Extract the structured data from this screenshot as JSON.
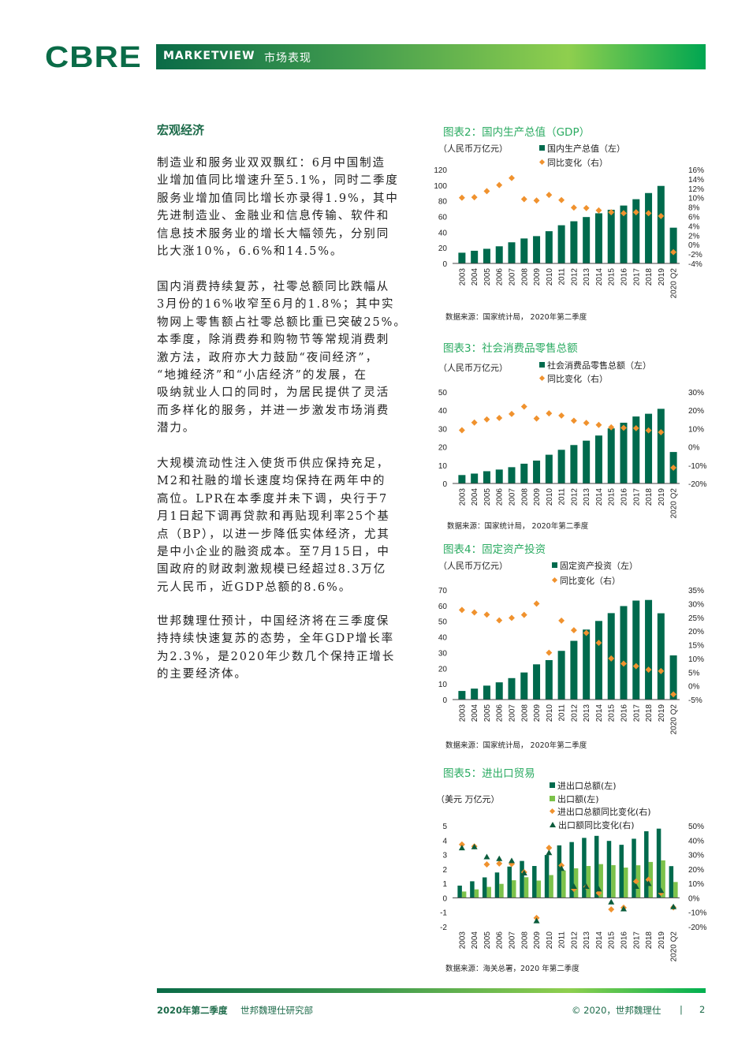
{
  "header": {
    "logo": "CBRE",
    "banner_title": "MARKETVIEW",
    "banner_subtitle": "市场表现"
  },
  "section_heading": "宏观经济",
  "paragraphs": [
    [
      "制造业和服务业双双飘红：6月中国制造",
      "业增加值同比增速升至5.1%，同时二季度",
      "服务业增加值同比增长亦录得1.9%，其中",
      "先进制造业、金融业和信息传输、软件和",
      "信息技术服务业的增长大幅领先，分别同",
      "比大涨10%，6.6%和14.5%。"
    ],
    [
      "国内消费持续复苏，社零总额同比跌幅从",
      "3月份的16%收窄至6月的1.8%；其中实",
      "物网上零售额占社零总额比重已突破25%。",
      "本季度，除消费券和购物节等常规消费刺",
      "激方法，政府亦大力鼓励“夜间经济”，",
      "“地摊经济”和“小店经济”的发展，在",
      "吸纳就业人口的同时，为居民提供了灵活",
      "而多样化的服务，并进一步激发市场消费",
      "潜力。"
    ],
    [
      "大规模流动性注入使货币供应保持充足，",
      "M2和社融的增长速度均保持在两年中的",
      "高位。LPR在本季度并未下调，央行于7",
      "月1日起下调再贷款和再贴现利率25个基",
      "点（BP），以进一步降低实体经济，尤其",
      "是中小企业的融资成本。至7月15日，中",
      "国政府的财政刺激规模已经超过8.3万亿",
      "元人民币，近GDP总额的8.6%。"
    ],
    [
      "世邦魏理仕预计，中国经济将在三季度保",
      "持持续快速复苏的态势，全年GDP增长率",
      "为2.3%，是2020年少数几个保持正增长",
      "的主要经济体。"
    ]
  ],
  "colors": {
    "bar_dark": "#006a4d",
    "bar_light": "#7cc24a",
    "diamond": "#f0922e",
    "triangle": "#0b5c3c",
    "accent": "#2bab62"
  },
  "chart_data": [
    {
      "type": "bar",
      "title": "图表2：国内生产总值（GDP）",
      "ylabel": "（人民币万亿元）",
      "categories": [
        "2003",
        "2004",
        "2005",
        "2006",
        "2007",
        "2008",
        "2009",
        "2010",
        "2011",
        "2012",
        "2013",
        "2014",
        "2015",
        "2016",
        "2017",
        "2018",
        "2019",
        "2020 Q2"
      ],
      "series": [
        {
          "name": "国内生产总值（左）",
          "kind": "bar",
          "axis": "left",
          "values": [
            13.7,
            16.2,
            18.7,
            21.9,
            27.0,
            31.9,
            34.9,
            41.2,
            48.8,
            53.9,
            59.3,
            64.1,
            68.6,
            74.0,
            82.1,
            90.0,
            99.1,
            45.7
          ]
        },
        {
          "name": "同比变化（右）",
          "kind": "diamond",
          "axis": "right",
          "values": [
            10.0,
            10.1,
            11.4,
            12.7,
            14.2,
            9.7,
            9.4,
            10.6,
            9.5,
            7.9,
            7.8,
            7.3,
            6.9,
            6.7,
            6.9,
            6.7,
            6.1,
            -1.6
          ]
        }
      ],
      "ylim": [
        0,
        120
      ],
      "yticks": [
        "0",
        "20",
        "40",
        "60",
        "80",
        "100",
        "120"
      ],
      "y2lim": [
        -4,
        16
      ],
      "y2ticks": [
        "-4%",
        "-2%",
        "0%",
        "2%",
        "4%",
        "6%",
        "8%",
        "10%",
        "12%",
        "14%",
        "16%"
      ],
      "legend": "top-right",
      "source": "数据来源：国家统计局， 2020年第二季度"
    },
    {
      "type": "bar",
      "title": "图表3：社会消费品零售总额",
      "ylabel": "（人民币万亿元）",
      "categories": [
        "2003",
        "2004",
        "2005",
        "2006",
        "2007",
        "2008",
        "2009",
        "2010",
        "2011",
        "2012",
        "2013",
        "2014",
        "2015",
        "2016",
        "2017",
        "2018",
        "2019",
        "2020 Q2"
      ],
      "series": [
        {
          "name": "社会消费品零售总额（左）",
          "kind": "bar",
          "axis": "left",
          "values": [
            4.6,
            5.4,
            6.7,
            7.6,
            8.9,
            10.8,
            12.5,
            15.7,
            18.4,
            21.0,
            23.4,
            26.2,
            30.1,
            33.2,
            36.6,
            38.1,
            40.8,
            17.2
          ]
        },
        {
          "name": "同比变化（右）",
          "kind": "diamond",
          "axis": "right",
          "values": [
            9.1,
            13.3,
            15.0,
            15.8,
            18.0,
            22.0,
            15.5,
            18.3,
            17.1,
            14.3,
            13.1,
            12.0,
            10.7,
            10.4,
            10.2,
            9.0,
            8.0,
            -11.4
          ]
        }
      ],
      "ylim": [
        0,
        50
      ],
      "yticks": [
        "0",
        "10",
        "20",
        "30",
        "40",
        "50"
      ],
      "y2lim": [
        -20,
        30
      ],
      "y2ticks": [
        "-20%",
        "-10%",
        "0%",
        "10%",
        "20%",
        "30%"
      ],
      "legend": "top-right",
      "source": "数据来源：国家统计局， 2020年第二季度"
    },
    {
      "type": "bar",
      "title": "图表4：固定资产投资",
      "ylabel": "（人民币万亿元）",
      "categories": [
        "2003",
        "2004",
        "2005",
        "2006",
        "2007",
        "2008",
        "2009",
        "2010",
        "2011",
        "2012",
        "2013",
        "2014",
        "2015",
        "2016",
        "2017",
        "2018",
        "2019",
        "2020 Q2"
      ],
      "series": [
        {
          "name": "固定资产投资（左）",
          "kind": "bar",
          "axis": "left",
          "values": [
            5.5,
            7.0,
            8.9,
            11.0,
            13.7,
            17.3,
            22.5,
            25.2,
            31.1,
            37.5,
            44.7,
            50.2,
            55.2,
            59.7,
            63.2,
            63.6,
            55.1,
            28.2
          ]
        },
        {
          "name": "同比变化（右）",
          "kind": "diamond",
          "axis": "right",
          "values": [
            27.7,
            26.8,
            26.0,
            23.9,
            24.8,
            25.9,
            30.0,
            12.1,
            23.8,
            20.3,
            19.3,
            15.7,
            10.0,
            8.1,
            7.2,
            5.9,
            5.4,
            -3.1
          ]
        }
      ],
      "ylim": [
        0,
        70
      ],
      "yticks": [
        "0",
        "10",
        "20",
        "30",
        "40",
        "50",
        "60",
        "70"
      ],
      "y2lim": [
        -5,
        35
      ],
      "y2ticks": [
        "-5%",
        "0%",
        "5%",
        "10%",
        "15%",
        "20%",
        "25%",
        "30%",
        "35%"
      ],
      "legend": "top-right",
      "source": "数据来源：国家统计局， 2020年第二季度"
    },
    {
      "type": "bar",
      "title": "图表5：进出口贸易",
      "ylabel": "（美元 万亿元）",
      "categories": [
        "2003",
        "2004",
        "2005",
        "2006",
        "2007",
        "2008",
        "2009",
        "2010",
        "2011",
        "2012",
        "2013",
        "2014",
        "2015",
        "2016",
        "2017",
        "2018",
        "2019",
        "2020 Q2"
      ],
      "series": [
        {
          "name": "进出口总额(左)",
          "kind": "bar",
          "axis": "left",
          "values": [
            0.85,
            1.15,
            1.42,
            1.76,
            2.17,
            2.56,
            2.21,
            2.97,
            3.64,
            3.87,
            4.16,
            4.3,
            3.95,
            3.68,
            4.1,
            4.62,
            4.8,
            2.2
          ]
        },
        {
          "name": "出口额(左)",
          "kind": "bar2",
          "axis": "left",
          "values": [
            0.44,
            0.59,
            0.76,
            0.97,
            1.22,
            1.43,
            1.2,
            1.58,
            1.9,
            2.05,
            2.21,
            2.34,
            2.27,
            2.1,
            2.26,
            2.49,
            2.6,
            1.1
          ]
        },
        {
          "name": "进出口总额同比变化(右)",
          "kind": "diamond",
          "axis": "right",
          "values": [
            37.0,
            35.7,
            23.2,
            23.8,
            23.5,
            17.8,
            -13.9,
            34.7,
            22.5,
            6.2,
            7.6,
            3.4,
            -8.0,
            -6.8,
            11.4,
            12.6,
            3.4,
            -6.6
          ]
        },
        {
          "name": "出口额同比变化(右)",
          "kind": "triangle",
          "axis": "right",
          "values": [
            34.6,
            35.4,
            28.4,
            27.2,
            25.7,
            17.2,
            -16.0,
            31.3,
            20.3,
            7.9,
            7.8,
            6.1,
            -2.9,
            -7.7,
            7.9,
            9.9,
            5.0,
            -6.2
          ]
        }
      ],
      "ylim": [
        -2,
        5
      ],
      "yticks": [
        "-2",
        "-1",
        "0",
        "1",
        "2",
        "3",
        "4",
        "5"
      ],
      "y2lim": [
        -20,
        50
      ],
      "y2ticks": [
        "-20%",
        "-10%",
        "0%",
        "10%",
        "20%",
        "30%",
        "40%",
        "50%"
      ],
      "legend": "top-right",
      "source": "数据来源：海关总署，2020 年第二季度"
    }
  ],
  "footer": {
    "left_quarter": "2020年第二季度",
    "left_dept": "世邦魏理仕研究部",
    "copyright": "© 2020，世邦魏理仕",
    "separator": "|",
    "page_number": "2"
  }
}
